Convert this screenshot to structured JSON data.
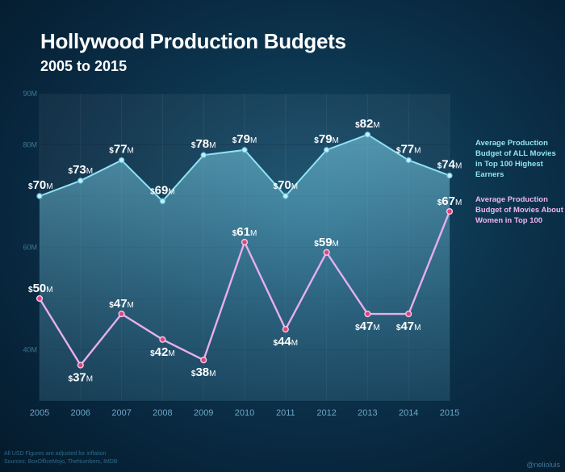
{
  "chart_data": {
    "type": "line",
    "title": "Hollywood Production Budgets",
    "subtitle": "2005 to 2015",
    "categories": [
      "2005",
      "2006",
      "2007",
      "2008",
      "2009",
      "2010",
      "2011",
      "2012",
      "2013",
      "2014",
      "2015"
    ],
    "y_ticks": [
      "90M",
      "80M",
      "60M",
      "40M"
    ],
    "ylim": [
      30,
      90
    ],
    "grid": true,
    "legend_position": "right",
    "series": [
      {
        "name": "Average Production Budget of ALL Movies in Top 100 Highest Earners",
        "values": [
          70,
          73,
          77,
          69,
          78,
          79,
          70,
          79,
          82,
          77,
          74
        ],
        "color": "#8fe3f2",
        "fill": "area"
      },
      {
        "name": "Average Production Budget of Movies About Women in Top 100",
        "values": [
          50,
          37,
          47,
          42,
          38,
          61,
          44,
          59,
          47,
          47,
          67
        ],
        "color": "#efb6f2",
        "fill": "none"
      }
    ],
    "label_prefix": "$",
    "label_suffix": "M"
  },
  "footnote": {
    "line1": "All USD Figures are adjusted for inflation",
    "line2": "Sources: BoxOfficeMojo, TheNumbers, IMDB"
  },
  "credit": "@nelioluis",
  "colors": {
    "series_all": "#8fe3f2",
    "series_women": "#efb6f2",
    "marker_women": "#d94a6e",
    "background": "#0d3650"
  }
}
